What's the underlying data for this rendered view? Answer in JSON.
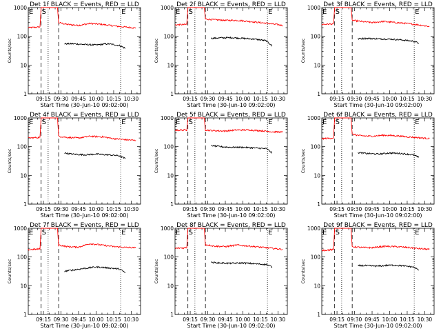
{
  "figure": {
    "xtick_labels": [
      "09:15",
      "09:30",
      "09:45",
      "10:00",
      "10:15",
      "10:30"
    ],
    "ytick_labels": [
      "1",
      "10",
      "100",
      "1000"
    ],
    "xlabel": "Start Time (30-Jun-10 09:02:00)",
    "ylabel": "Counts/sec",
    "marker_labels": [
      "E",
      "S",
      "E"
    ],
    "colors": {
      "events": "#000000",
      "lld": "#ff0000"
    }
  },
  "chart_data": [
    {
      "type": "line",
      "title": "Det 1f BLACK = Events, RED = LLD",
      "xlabel": "Start Time (30-Jun-10 09:02:00)",
      "ylabel": "Counts/sec",
      "y_scale": "log",
      "ylim": [
        1,
        1000
      ],
      "x_range": [
        "09:02",
        "10:38"
      ],
      "grid": false,
      "series": [
        {
          "name": "LLD",
          "color": "#ff0000",
          "x": [
            "09:02",
            "09:12",
            "09:13",
            "09:27",
            "09:28",
            "09:35",
            "09:45",
            "09:55",
            "10:05",
            "10:15",
            "10:25",
            "10:34"
          ],
          "values": [
            200,
            210,
            1000,
            1000,
            300,
            260,
            240,
            280,
            260,
            230,
            210,
            195
          ]
        },
        {
          "name": "Events",
          "color": "#000000",
          "x": [
            "09:33",
            "09:40",
            "09:50",
            "10:00",
            "10:10",
            "10:20",
            "10:25"
          ],
          "values": [
            55,
            55,
            52,
            50,
            55,
            48,
            38
          ]
        }
      ]
    },
    {
      "type": "line",
      "title": "Det 2f BLACK = Events, RED = LLD",
      "xlabel": "Start Time (30-Jun-10 09:02:00)",
      "ylabel": "Counts/sec",
      "y_scale": "log",
      "ylim": [
        1,
        1000
      ],
      "x_range": [
        "09:02",
        "10:38"
      ],
      "grid": false,
      "series": [
        {
          "name": "LLD",
          "color": "#ff0000",
          "x": [
            "09:02",
            "09:12",
            "09:13",
            "09:27",
            "09:28",
            "09:35",
            "09:45",
            "09:55",
            "10:05",
            "10:15",
            "10:25",
            "10:34"
          ],
          "values": [
            250,
            260,
            1000,
            1000,
            400,
            380,
            360,
            360,
            330,
            300,
            270,
            240
          ]
        },
        {
          "name": "Events",
          "color": "#000000",
          "x": [
            "09:33",
            "09:40",
            "09:50",
            "10:00",
            "10:10",
            "10:20",
            "10:25"
          ],
          "values": [
            85,
            88,
            90,
            85,
            80,
            70,
            45
          ]
        }
      ]
    },
    {
      "type": "line",
      "title": "Det 3f BLACK = Events, RED = LLD",
      "xlabel": "Start Time (30-Jun-10 09:02:00)",
      "ylabel": "Counts/sec",
      "y_scale": "log",
      "ylim": [
        1,
        1000
      ],
      "x_range": [
        "09:02",
        "10:38"
      ],
      "grid": false,
      "series": [
        {
          "name": "LLD",
          "color": "#ff0000",
          "x": [
            "09:02",
            "09:12",
            "09:13",
            "09:27",
            "09:28",
            "09:35",
            "09:45",
            "09:55",
            "10:05",
            "10:15",
            "10:25",
            "10:34"
          ],
          "values": [
            260,
            270,
            1000,
            1000,
            360,
            330,
            300,
            330,
            300,
            280,
            250,
            220
          ]
        },
        {
          "name": "Events",
          "color": "#000000",
          "x": [
            "09:33",
            "09:40",
            "09:50",
            "10:00",
            "10:10",
            "10:20",
            "10:25"
          ],
          "values": [
            82,
            85,
            82,
            80,
            75,
            68,
            58
          ]
        }
      ]
    },
    {
      "type": "line",
      "title": "Det 4f BLACK = Events, RED = LLD",
      "xlabel": "Start Time (30-Jun-10 09:02:00)",
      "ylabel": "Counts/sec",
      "y_scale": "log",
      "ylim": [
        1,
        1000
      ],
      "x_range": [
        "09:02",
        "10:38"
      ],
      "grid": false,
      "series": [
        {
          "name": "LLD",
          "color": "#ff0000",
          "x": [
            "09:02",
            "09:12",
            "09:13",
            "09:27",
            "09:28",
            "09:35",
            "09:45",
            "09:55",
            "10:05",
            "10:15",
            "10:25",
            "10:34"
          ],
          "values": [
            200,
            210,
            1000,
            1000,
            230,
            210,
            200,
            230,
            220,
            190,
            175,
            165
          ]
        },
        {
          "name": "Events",
          "color": "#000000",
          "x": [
            "09:33",
            "09:40",
            "09:50",
            "10:00",
            "10:10",
            "10:20",
            "10:25"
          ],
          "values": [
            60,
            55,
            52,
            55,
            52,
            48,
            38
          ]
        }
      ]
    },
    {
      "type": "line",
      "title": "Det 5f BLACK = Events, RED = LLD",
      "xlabel": "Start Time (30-Jun-10 09:02:00)",
      "ylabel": "Counts/sec",
      "y_scale": "log",
      "ylim": [
        1,
        1000
      ],
      "x_range": [
        "09:02",
        "10:38"
      ],
      "grid": false,
      "series": [
        {
          "name": "LLD",
          "color": "#ff0000",
          "x": [
            "09:02",
            "09:12",
            "09:13",
            "09:27",
            "09:28",
            "09:35",
            "09:45",
            "09:55",
            "10:05",
            "10:15",
            "10:25",
            "10:34"
          ],
          "values": [
            370,
            380,
            1000,
            1000,
            380,
            360,
            350,
            380,
            380,
            360,
            330,
            320
          ]
        },
        {
          "name": "Events",
          "color": "#000000",
          "x": [
            "09:33",
            "09:40",
            "09:50",
            "10:00",
            "10:10",
            "10:20",
            "10:25"
          ],
          "values": [
            110,
            100,
            95,
            95,
            90,
            85,
            60
          ]
        }
      ]
    },
    {
      "type": "line",
      "title": "Det 6f BLACK = Events, RED = LLD",
      "xlabel": "Start Time (30-Jun-10 09:02:00)",
      "ylabel": "Counts/sec",
      "y_scale": "log",
      "ylim": [
        1,
        1000
      ],
      "x_range": [
        "09:02",
        "10:38"
      ],
      "grid": false,
      "series": [
        {
          "name": "LLD",
          "color": "#ff0000",
          "x": [
            "09:02",
            "09:12",
            "09:13",
            "09:27",
            "09:28",
            "09:35",
            "09:45",
            "09:55",
            "10:05",
            "10:15",
            "10:25",
            "10:34"
          ],
          "values": [
            190,
            200,
            1000,
            1000,
            270,
            240,
            230,
            250,
            240,
            220,
            205,
            190
          ]
        },
        {
          "name": "Events",
          "color": "#000000",
          "x": [
            "09:33",
            "09:40",
            "09:50",
            "10:00",
            "10:10",
            "10:20",
            "10:25"
          ],
          "values": [
            62,
            58,
            55,
            60,
            58,
            52,
            42
          ]
        }
      ]
    },
    {
      "type": "line",
      "title": "Det 7f BLACK = Events, RED = LLD",
      "xlabel": "Start Time (30-Jun-10 09:02:00)",
      "ylabel": "Counts/sec",
      "y_scale": "log",
      "ylim": [
        1,
        1000
      ],
      "x_range": [
        "09:02",
        "10:38"
      ],
      "grid": false,
      "series": [
        {
          "name": "LLD",
          "color": "#ff0000",
          "x": [
            "09:02",
            "09:12",
            "09:13",
            "09:27",
            "09:28",
            "09:35",
            "09:45",
            "09:55",
            "10:05",
            "10:15",
            "10:25",
            "10:34"
          ],
          "values": [
            180,
            190,
            1000,
            1000,
            260,
            230,
            220,
            290,
            260,
            230,
            215,
            210
          ]
        },
        {
          "name": "Events",
          "color": "#000000",
          "x": [
            "09:33",
            "09:40",
            "09:50",
            "10:00",
            "10:10",
            "10:20",
            "10:25"
          ],
          "values": [
            32,
            35,
            40,
            45,
            42,
            38,
            28
          ]
        }
      ]
    },
    {
      "type": "line",
      "title": "Det 8f BLACK = Events, RED = LLD",
      "xlabel": "Start Time (30-Jun-10 09:02:00)",
      "ylabel": "Counts/sec",
      "y_scale": "log",
      "ylim": [
        1,
        1000
      ],
      "x_range": [
        "09:02",
        "10:38"
      ],
      "grid": false,
      "series": [
        {
          "name": "LLD",
          "color": "#ff0000",
          "x": [
            "09:02",
            "09:12",
            "09:13",
            "09:27",
            "09:28",
            "09:35",
            "09:45",
            "09:55",
            "10:05",
            "10:15",
            "10:25",
            "10:34"
          ],
          "values": [
            200,
            210,
            1000,
            1000,
            270,
            240,
            230,
            260,
            240,
            220,
            200,
            185
          ]
        },
        {
          "name": "Events",
          "color": "#000000",
          "x": [
            "09:33",
            "09:40",
            "09:50",
            "10:00",
            "10:10",
            "10:20",
            "10:25"
          ],
          "values": [
            65,
            62,
            60,
            62,
            58,
            55,
            45
          ]
        }
      ]
    },
    {
      "type": "line",
      "title": "Det 9f BLACK = Events, RED = LLD",
      "xlabel": "Start Time (30-Jun-10 09:02:00)",
      "ylabel": "Counts/sec",
      "y_scale": "log",
      "ylim": [
        1,
        1000
      ],
      "x_range": [
        "09:02",
        "10:38"
      ],
      "grid": false,
      "series": [
        {
          "name": "LLD",
          "color": "#ff0000",
          "x": [
            "09:02",
            "09:12",
            "09:13",
            "09:27",
            "09:28",
            "09:35",
            "09:45",
            "09:55",
            "10:05",
            "10:15",
            "10:25",
            "10:34"
          ],
          "values": [
            170,
            180,
            1000,
            1000,
            230,
            215,
            210,
            235,
            230,
            215,
            195,
            185
          ]
        },
        {
          "name": "Events",
          "color": "#000000",
          "x": [
            "09:33",
            "09:40",
            "09:50",
            "10:00",
            "10:10",
            "10:20",
            "10:25"
          ],
          "values": [
            50,
            50,
            48,
            52,
            50,
            45,
            35
          ]
        }
      ]
    }
  ]
}
